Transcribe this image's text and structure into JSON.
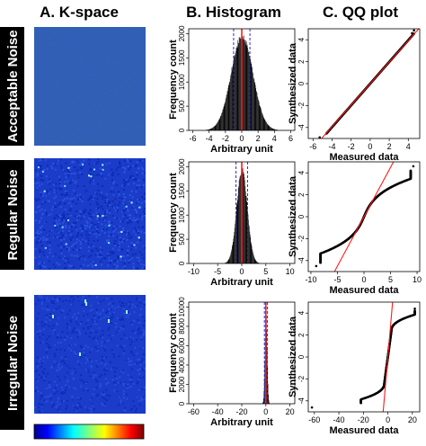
{
  "column_titles": {
    "kspace": "A. K-space",
    "histogram": "B. Histogram",
    "qq": "C. QQ plot"
  },
  "row_labels": [
    "Acceptable Noise",
    "Regular Noise",
    "Irregular Noise"
  ],
  "colors": {
    "kspace_background": "#1a3cc8",
    "histogram_bars": "#000000",
    "red_line": "#ff1a1a",
    "blue_dashed": "#2a2ad8",
    "qq_points": "#000000",
    "row_label_bg": "#000000"
  },
  "colorbar": {
    "colormap": "jet",
    "labels": []
  },
  "chart_data": [
    {
      "id": "hist-acceptable",
      "type": "bar",
      "title": "",
      "xlabel": "Arbitrary unit",
      "ylabel": "Frequency count",
      "xlim": [
        -6.5,
        6.5
      ],
      "ylim": [
        0,
        2100
      ],
      "xticks": [
        -6,
        -4,
        -2,
        0,
        2,
        4,
        6
      ],
      "yticks": [
        0,
        500,
        1000,
        1500,
        2000
      ],
      "distribution": {
        "center": 0,
        "sd": 1.35,
        "peak": 2000
      },
      "mean_line": 0,
      "sd_lines": [
        -1,
        1
      ]
    },
    {
      "id": "hist-regular",
      "type": "bar",
      "title": "",
      "xlabel": "Arbitrary unit",
      "ylabel": "Frequency count",
      "xlim": [
        -11,
        11
      ],
      "ylim": [
        0,
        2100
      ],
      "xticks": [
        -10,
        -5,
        0,
        5,
        10
      ],
      "yticks": [
        0,
        500,
        1000,
        1500,
        2000
      ],
      "distribution": {
        "center": 0,
        "sd": 1.1,
        "peak": 2000
      },
      "mean_line": 0,
      "sd_lines": [
        -1.2,
        1.2
      ]
    },
    {
      "id": "hist-irregular",
      "type": "bar",
      "title": "",
      "xlabel": "Arbitrary unit",
      "ylabel": "Frequency count",
      "xlim": [
        -64,
        24
      ],
      "ylim": [
        0,
        10500
      ],
      "xticks": [
        -60,
        -40,
        -20,
        0,
        20
      ],
      "yticks": [
        0,
        2000,
        4000,
        6000,
        8000,
        10000
      ],
      "distribution": {
        "center": 0,
        "sd": 0.9,
        "peak": 10000
      },
      "mean_line": 0,
      "sd_lines": [
        -1.2,
        1.2
      ]
    },
    {
      "id": "qq-acceptable",
      "type": "scatter",
      "title": "",
      "xlabel": "Measured data",
      "ylabel": "Synthesized data",
      "xlim": [
        -6.5,
        5.2
      ],
      "ylim": [
        -5,
        5
      ],
      "xticks": [
        -6,
        -4,
        -2,
        0,
        2,
        4
      ],
      "yticks": [
        -4,
        -2,
        0,
        2,
        4
      ],
      "reference_line": {
        "slope": 0.98,
        "intercept": 0
      },
      "shape": "linear",
      "range": [
        -4.6,
        4.6
      ],
      "outliers": [
        [
          -5.3,
          -4.9
        ],
        [
          4.4,
          4.6
        ],
        [
          4.6,
          4.85
        ]
      ]
    },
    {
      "id": "qq-regular",
      "type": "scatter",
      "title": "",
      "xlabel": "Measured data",
      "ylabel": "Synthesized data",
      "xlim": [
        -10.5,
        10.5
      ],
      "ylim": [
        -5,
        5
      ],
      "xticks": [
        -10,
        -5,
        0,
        5,
        10
      ],
      "yticks": [
        -4,
        -2,
        0,
        2,
        4
      ],
      "reference_line": {
        "slope": 0.9,
        "intercept": 0
      },
      "shape": "s-curve",
      "range": [
        -8.2,
        8.8
      ],
      "outliers": [
        [
          -9.0,
          -4.5
        ],
        [
          9.3,
          4.6
        ]
      ]
    },
    {
      "id": "qq-irregular",
      "type": "scatter",
      "title": "",
      "xlabel": "Measured data",
      "ylabel": "Synthesized data",
      "xlim": [
        -65,
        26
      ],
      "ylim": [
        -5,
        5
      ],
      "xticks": [
        -60,
        -40,
        -20,
        0,
        20
      ],
      "yticks": [
        -4,
        -2,
        0,
        2,
        4
      ],
      "reference_line": {
        "slope": 1.3,
        "intercept": 0
      },
      "shape": "heavy-tail",
      "range": [
        -22,
        22
      ],
      "outliers": [
        [
          -62,
          -4.6
        ],
        [
          20,
          3.8
        ],
        [
          22,
          4.4
        ]
      ]
    }
  ]
}
